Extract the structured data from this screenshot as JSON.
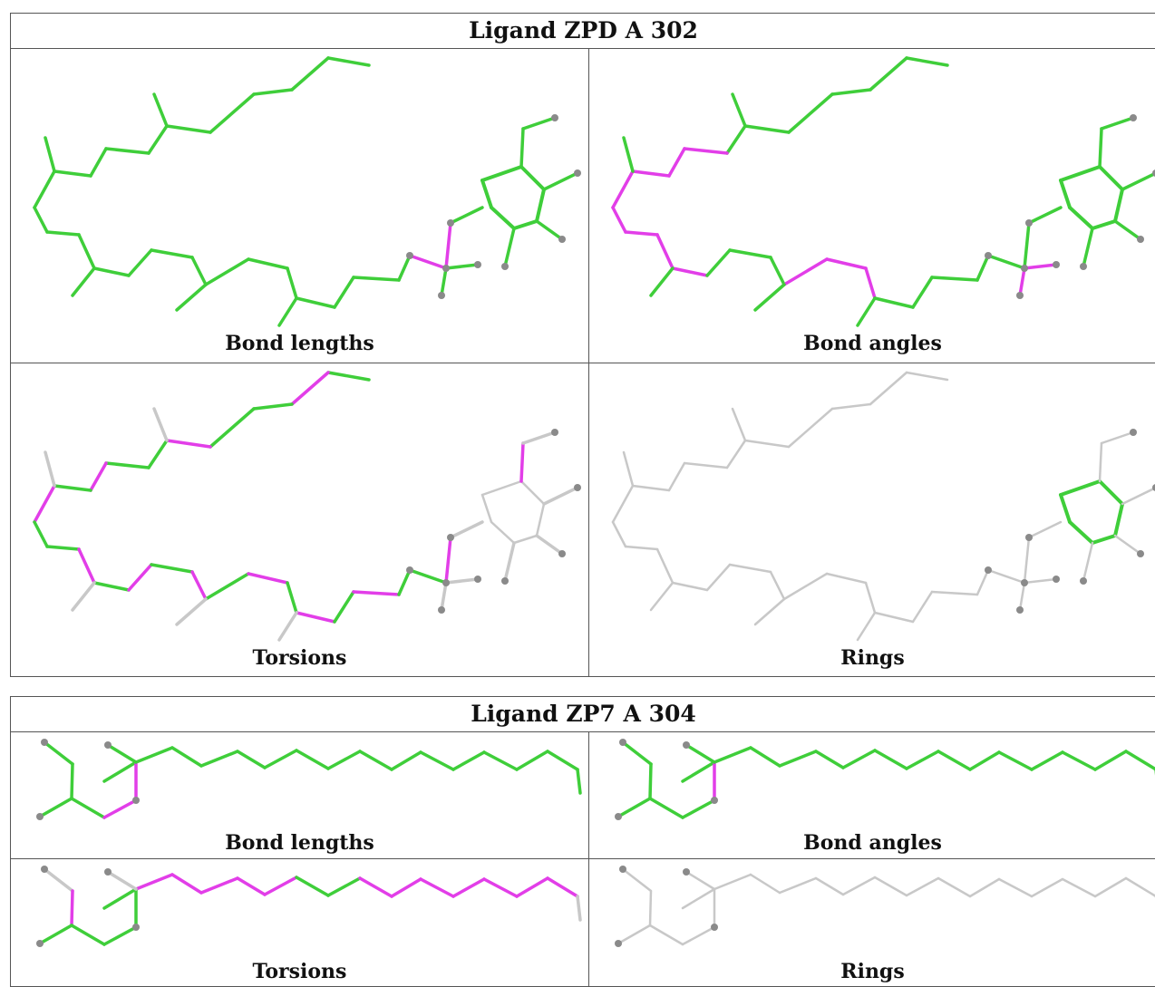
{
  "blocks": [
    {
      "title": "Ligand ZPD A 302",
      "panels": [
        {
          "label": "Bond lengths"
        },
        {
          "label": "Bond angles"
        },
        {
          "label": "Torsions"
        },
        {
          "label": "Rings"
        }
      ]
    },
    {
      "title": "Ligand ZP7 A 304",
      "panels": [
        {
          "label": "Bond lengths"
        },
        {
          "label": "Bond angles"
        },
        {
          "label": "Torsions"
        },
        {
          "label": "Rings"
        }
      ]
    }
  ],
  "colors": {
    "ok": "#3fce3a",
    "outlier": "#e23ee8",
    "neutral": "#c8c8c8",
    "atom": "#8a8a8a",
    "border": "#555555"
  }
}
